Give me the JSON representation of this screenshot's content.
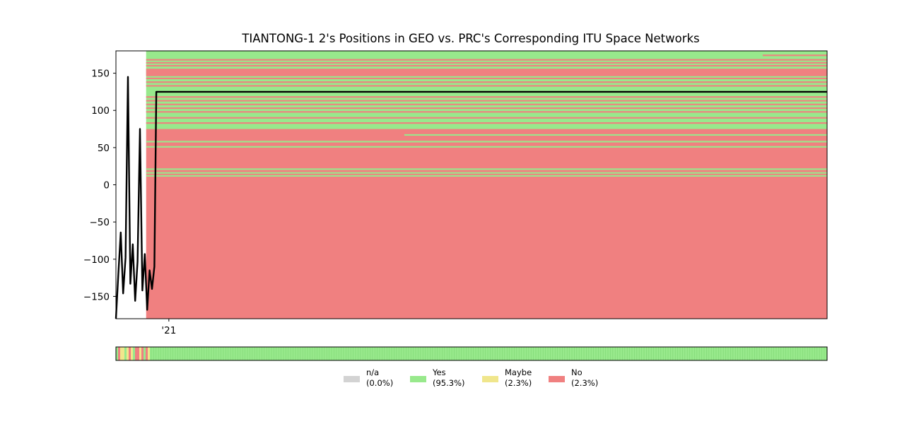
{
  "chart_data": {
    "type": "line",
    "title": "TIANTONG-1 2's Positions in GEO vs. PRC's Corresponding ITU Space Networks",
    "xlabel": "",
    "ylabel": "",
    "ylim": [
      -180,
      180
    ],
    "y_ticks": [
      150,
      100,
      50,
      0,
      -50,
      -100,
      -150
    ],
    "y_tick_labels": [
      "150",
      "100",
      "50",
      "0",
      "−50",
      "−100",
      "−150"
    ],
    "x_range": [
      "2020-06-17",
      "2027-09-30"
    ],
    "x_ticks": [
      {
        "x": "2021-01-01",
        "label": "'21"
      }
    ],
    "series": [
      {
        "x": [
          "2020-06-17",
          "2020-06-26",
          "2020-07-05",
          "2020-07-14",
          "2020-07-23",
          "2020-08-01",
          "2020-08-10",
          "2020-08-19",
          "2020-08-28",
          "2020-09-06",
          "2020-09-15",
          "2020-09-24",
          "2020-10-03",
          "2020-10-12",
          "2020-10-21",
          "2020-10-30",
          "2020-11-08",
          "2020-11-15",
          "2021-05-01",
          "2022-05-01",
          "2023-05-01",
          "2024-05-01",
          "2025-05-01",
          "2026-05-01",
          "2027-05-01",
          "2027-09-30"
        ],
        "y": [
          -180,
          -120,
          -64,
          -146,
          -98,
          145,
          -133,
          -80,
          -156,
          -103,
          75,
          -142,
          -93,
          -168,
          -115,
          -140,
          -110,
          125,
          125,
          125,
          125,
          125,
          125,
          125,
          125,
          125
        ],
        "color": "#000000"
      }
    ],
    "background_bands": {
      "start_x": "2020-10-08",
      "end_x": "2027-09-30",
      "colors": {
        "Yes": "#98e98c",
        "No": "#f08080"
      },
      "regions": [
        {
          "status": "Yes",
          "y": [
            75,
            180
          ]
        },
        {
          "status": "No",
          "y": [
            -180,
            75
          ]
        },
        {
          "status": "No",
          "y": [
            146,
            156
          ]
        }
      ],
      "stripes": [
        {
          "status": "Yes",
          "y": 12,
          "from_x": "2020-10-08"
        },
        {
          "status": "Yes",
          "y": 16,
          "from_x": "2020-10-08"
        },
        {
          "status": "Yes",
          "y": 21,
          "from_x": "2020-10-08"
        },
        {
          "status": "Yes",
          "y": 51,
          "from_x": "2020-10-08"
        },
        {
          "status": "Yes",
          "y": 58,
          "from_x": "2020-10-08"
        },
        {
          "status": "Yes",
          "y": 67,
          "from_x": "2023-06-01"
        },
        {
          "status": "No",
          "y": 83,
          "from_x": "2020-10-08"
        },
        {
          "status": "No",
          "y": 90,
          "from_x": "2020-10-08"
        },
        {
          "status": "No",
          "y": 98,
          "from_x": "2020-10-08"
        },
        {
          "status": "No",
          "y": 103,
          "from_x": "2020-10-08"
        },
        {
          "status": "No",
          "y": 108,
          "from_x": "2020-10-08"
        },
        {
          "status": "No",
          "y": 113,
          "from_x": "2020-10-08"
        },
        {
          "status": "No",
          "y": 118,
          "from_x": "2020-10-08"
        },
        {
          "status": "No",
          "y": 133,
          "from_x": "2020-10-08"
        },
        {
          "status": "No",
          "y": 138,
          "from_x": "2020-10-08"
        },
        {
          "status": "No",
          "y": 143,
          "from_x": "2020-10-08"
        },
        {
          "status": "No",
          "y": 160,
          "from_x": "2020-10-08"
        },
        {
          "status": "No",
          "y": 164,
          "from_x": "2020-10-08"
        },
        {
          "status": "No",
          "y": 168,
          "from_x": "2020-10-08"
        },
        {
          "status": "No",
          "y": 174,
          "from_x": "2027-02-01"
        }
      ]
    },
    "status_strip": {
      "colors": {
        "n/a": "#d3d3d3",
        "Yes": "#98e98c",
        "Maybe": "#f0e68c",
        "No": "#f08080"
      },
      "early_sequence": [
        "Yes",
        "No",
        "Maybe",
        "Maybe",
        "Yes",
        "Maybe",
        "No",
        "Maybe",
        "Yes",
        "No",
        "No",
        "Maybe",
        "No",
        "Yes",
        "No",
        "Maybe"
      ],
      "rest": "Yes"
    },
    "legend": [
      {
        "label": "n/a",
        "value": "(0.0%)",
        "color": "#d3d3d3"
      },
      {
        "label": "Yes",
        "value": "(95.3%)",
        "color": "#98e98c"
      },
      {
        "label": "Maybe",
        "value": "(2.3%)",
        "color": "#f0e68c"
      },
      {
        "label": "No",
        "value": "(2.3%)",
        "color": "#f08080"
      }
    ],
    "legend_position": "bottom-center"
  }
}
